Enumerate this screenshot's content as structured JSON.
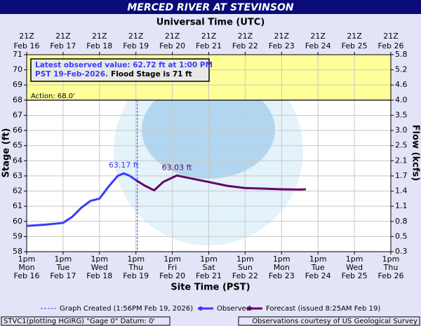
{
  "chart_data": {
    "type": "line",
    "title": "MERCED RIVER AT STEVINSON",
    "x2_label": "Universal Time (UTC)",
    "x_label": "Site Time (PST)",
    "y_label": "Stage (ft)",
    "y2_label": "Flow (kcfs)",
    "xlim": [
      "Feb 16 13:00",
      "Feb 26 13:00"
    ],
    "xticks": [
      {
        "value": "Feb 16 13:00",
        "label": [
          "1pm",
          "Mon",
          "Feb 16"
        ]
      },
      {
        "value": "Feb 17 13:00",
        "label": [
          "1pm",
          "Tue",
          "Feb 17"
        ]
      },
      {
        "value": "Feb 18 13:00",
        "label": [
          "1pm",
          "Wed",
          "Feb 18"
        ]
      },
      {
        "value": "Feb 19 13:00",
        "label": [
          "1pm",
          "Thu",
          "Feb 19"
        ]
      },
      {
        "value": "Feb 20 13:00",
        "label": [
          "1pm",
          "Fri",
          "Feb 20"
        ]
      },
      {
        "value": "Feb 21 13:00",
        "label": [
          "1pm",
          "Sat",
          "Feb 21"
        ]
      },
      {
        "value": "Feb 22 13:00",
        "label": [
          "1pm",
          "Sun",
          "Feb 22"
        ]
      },
      {
        "value": "Feb 23 13:00",
        "label": [
          "1pm",
          "Mon",
          "Feb 23"
        ]
      },
      {
        "value": "Feb 24 13:00",
        "label": [
          "1pm",
          "Tue",
          "Feb 24"
        ]
      },
      {
        "value": "Feb 25 13:00",
        "label": [
          "1pm",
          "Wed",
          "Feb 25"
        ]
      },
      {
        "value": "Feb 26 13:00",
        "label": [
          "1pm",
          "Thu",
          "Feb 26"
        ]
      }
    ],
    "x2ticks": [
      {
        "value": "Feb 16 13:00",
        "label": [
          "21Z",
          "Feb 16"
        ]
      },
      {
        "value": "Feb 17 13:00",
        "label": [
          "21Z",
          "Feb 17"
        ]
      },
      {
        "value": "Feb 18 13:00",
        "label": [
          "21Z",
          "Feb 18"
        ]
      },
      {
        "value": "Feb 19 13:00",
        "label": [
          "21Z",
          "Feb 19"
        ]
      },
      {
        "value": "Feb 20 13:00",
        "label": [
          "21Z",
          "Feb 20"
        ]
      },
      {
        "value": "Feb 21 13:00",
        "label": [
          "21Z",
          "Feb 21"
        ]
      },
      {
        "value": "Feb 22 13:00",
        "label": [
          "21Z",
          "Feb 22"
        ]
      },
      {
        "value": "Feb 23 13:00",
        "label": [
          "21Z",
          "Feb 23"
        ]
      },
      {
        "value": "Feb 24 13:00",
        "label": [
          "21Z",
          "Feb 24"
        ]
      },
      {
        "value": "Feb 25 13:00",
        "label": [
          "21Z",
          "Feb 25"
        ]
      },
      {
        "value": "Feb 26 13:00",
        "label": [
          "21Z",
          "Feb 26"
        ]
      }
    ],
    "ylim": [
      58,
      71
    ],
    "yticks": [
      58,
      59,
      60,
      61,
      62,
      63,
      64,
      65,
      66,
      67,
      68,
      69,
      70,
      71
    ],
    "y2ticks": [
      0.3,
      0.5,
      0.8,
      1.1,
      1.4,
      1.7,
      2.1,
      2.5,
      {
        "value": 3,
        "label": "3.0"
      },
      3.5,
      {
        "value": 4,
        "label": "4.0"
      },
      4.6,
      5.2,
      5.8
    ],
    "grid": true,
    "action": {
      "value": 68,
      "label": "Action: 68.0'"
    },
    "flood_stage": 71,
    "flood_color": "#ffff99",
    "annotation": {
      "line1": "Latest observed value: 62.72 ft at 1:00 PM",
      "line2": "PST 19-Feb-2026.",
      "line3": "Flood Stage is 71 ft"
    },
    "created": {
      "x": "Feb 19 13:56",
      "label": "Graph Created (1:56PM Feb 19, 2026)"
    },
    "series": [
      {
        "name": "Observed",
        "color": "#3a3aff",
        "x": [
          "Feb 16 13:00",
          "Feb 17 01:00",
          "Feb 17 13:00",
          "Feb 17 19:00",
          "Feb 18 01:00",
          "Feb 18 07:00",
          "Feb 18 13:00",
          "Feb 18 19:00",
          "Feb 19 01:00",
          "Feb 19 05:00",
          "Feb 19 09:00",
          "Feb 19 13:00"
        ],
        "values": [
          59.7,
          59.78,
          59.9,
          60.3,
          60.9,
          61.35,
          61.5,
          62.3,
          63.0,
          63.17,
          63.0,
          62.72
        ],
        "value_labels": [
          null,
          null,
          null,
          null,
          null,
          null,
          null,
          null,
          null,
          "63.17 ft",
          null,
          null
        ]
      },
      {
        "name": "Forecast (issued 8:25AM Feb 19)",
        "color": "#660066",
        "x": [
          "Feb 19 13:00",
          "Feb 19 19:00",
          "Feb 20 01:00",
          "Feb 20 07:00",
          "Feb 20 16:00",
          "Feb 20 22:00",
          "Feb 21 13:00",
          "Feb 22 01:00",
          "Feb 22 13:00",
          "Feb 23 13:00",
          "Feb 24 01:00",
          "Feb 24 05:00"
        ],
        "values": [
          62.72,
          62.35,
          62.05,
          62.6,
          63.03,
          62.9,
          62.6,
          62.35,
          62.2,
          62.12,
          62.1,
          62.12
        ],
        "value_labels": [
          null,
          null,
          null,
          null,
          "63.03 ft",
          null,
          null,
          null,
          null,
          null,
          null,
          null
        ]
      }
    ],
    "footer_left": "STVC1(plotting HGIRG) \"Gage 0\" Datum: 0'",
    "footer_right": "Observations courtesy of US Geological Survey"
  }
}
